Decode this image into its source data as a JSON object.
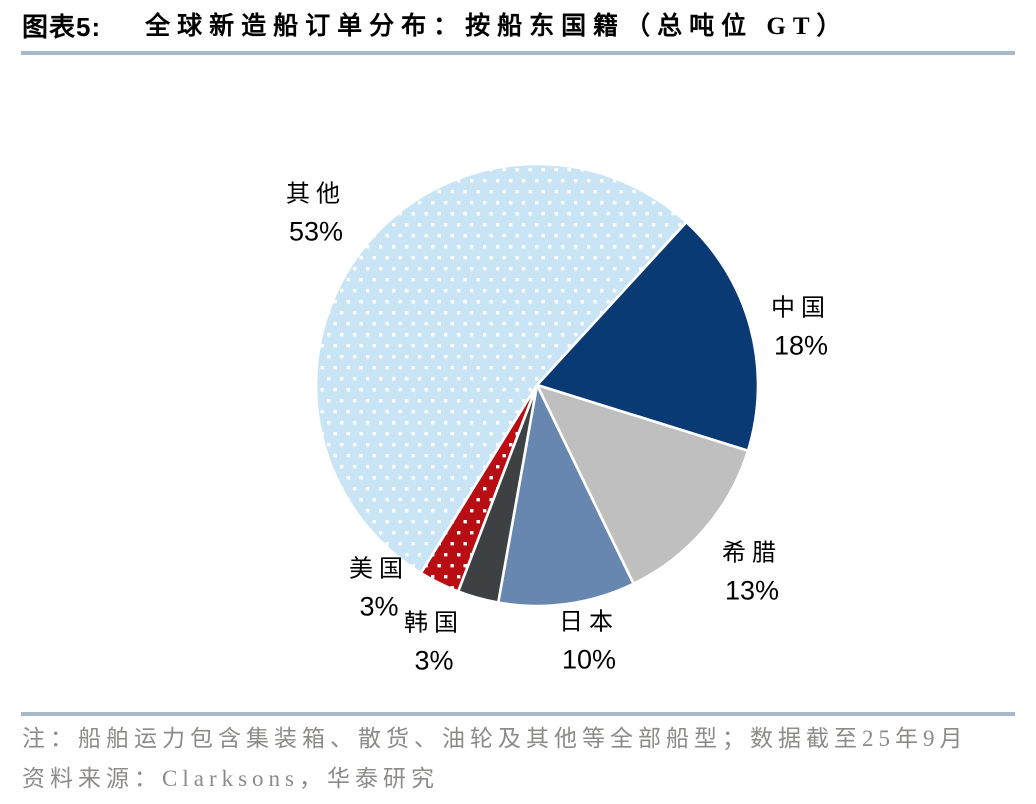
{
  "header": {
    "tag": "图表5:",
    "title": "全球新造船订单分布：按船东国籍（总吨位 GT）"
  },
  "chart_data": {
    "type": "pie",
    "title": "全球新造船订单分布：按船东国籍（总吨位 GT）",
    "start_angle_deg": 42.5,
    "clockwise": true,
    "legend": "none",
    "label_color": "#000000",
    "separator_color": "#ffffff",
    "slices": [
      {
        "label": "中国",
        "value_pct": 18,
        "pct_label": "18%",
        "color": "#0a3a74",
        "pattern": "solid"
      },
      {
        "label": "希腊",
        "value_pct": 13,
        "pct_label": "13%",
        "color": "#bfbfbf",
        "pattern": "solid"
      },
      {
        "label": "日本",
        "value_pct": 10,
        "pct_label": "10%",
        "color": "#6787b1",
        "pattern": "solid"
      },
      {
        "label": "韩国",
        "value_pct": 3,
        "pct_label": "3%",
        "color": "#3e4144",
        "pattern": "solid"
      },
      {
        "label": "美国",
        "value_pct": 3,
        "pct_label": "3%",
        "color": "#b80d12",
        "pattern": "white-dots"
      },
      {
        "label": "其他",
        "value_pct": 53,
        "pct_label": "53%",
        "color": "#c8e4f5",
        "pattern": "white-dots"
      }
    ]
  },
  "footer": {
    "note": "注：船舶运力包含集装箱、散货、油轮及其他等全部船型；数据截至25年9月",
    "source": "资料来源：Clarksons，华泰研究"
  },
  "colors": {
    "divider": "#a7b8c9",
    "note_text": "#8d8b89",
    "title_text": "#000000",
    "background": "#ffffff"
  }
}
